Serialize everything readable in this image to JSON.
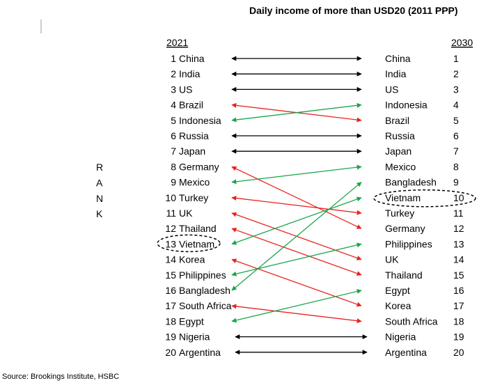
{
  "chart_data": {
    "type": "slope",
    "title": "Daily income of more than USD20 (2011 PPP)",
    "left_header": "2021",
    "right_header": "2030",
    "axis_label": [
      "R",
      "A",
      "N",
      "K"
    ],
    "source": "Source: Brookings Institute, HSBC",
    "colors": {
      "up": "#1aa64a",
      "down": "#e8231f",
      "same": "#000000",
      "highlight": "#000000"
    },
    "ranks_2021": [
      {
        "rank": 1,
        "country": "China"
      },
      {
        "rank": 2,
        "country": "India"
      },
      {
        "rank": 3,
        "country": "US"
      },
      {
        "rank": 4,
        "country": "Brazil"
      },
      {
        "rank": 5,
        "country": "Indonesia"
      },
      {
        "rank": 6,
        "country": "Russia"
      },
      {
        "rank": 7,
        "country": "Japan"
      },
      {
        "rank": 8,
        "country": "Germany"
      },
      {
        "rank": 9,
        "country": "Mexico"
      },
      {
        "rank": 10,
        "country": "Turkey"
      },
      {
        "rank": 11,
        "country": "UK"
      },
      {
        "rank": 12,
        "country": "Thailand"
      },
      {
        "rank": 13,
        "country": "Vietnam"
      },
      {
        "rank": 14,
        "country": "Korea"
      },
      {
        "rank": 15,
        "country": "Philippines"
      },
      {
        "rank": 16,
        "country": "Bangladesh"
      },
      {
        "rank": 17,
        "country": "South Africa"
      },
      {
        "rank": 18,
        "country": "Egypt"
      },
      {
        "rank": 19,
        "country": "Nigeria"
      },
      {
        "rank": 20,
        "country": "Argentina"
      }
    ],
    "ranks_2030": [
      {
        "rank": 1,
        "country": "China"
      },
      {
        "rank": 2,
        "country": "India"
      },
      {
        "rank": 3,
        "country": "US"
      },
      {
        "rank": 4,
        "country": "Indonesia"
      },
      {
        "rank": 5,
        "country": "Brazil"
      },
      {
        "rank": 6,
        "country": "Russia"
      },
      {
        "rank": 7,
        "country": "Japan"
      },
      {
        "rank": 8,
        "country": "Mexico"
      },
      {
        "rank": 9,
        "country": "Bangladesh"
      },
      {
        "rank": 10,
        "country": "Vietnam"
      },
      {
        "rank": 11,
        "country": "Turkey"
      },
      {
        "rank": 12,
        "country": "Germany"
      },
      {
        "rank": 13,
        "country": "Philippines"
      },
      {
        "rank": 14,
        "country": "UK"
      },
      {
        "rank": 15,
        "country": "Thailand"
      },
      {
        "rank": 16,
        "country": "Egypt"
      },
      {
        "rank": 17,
        "country": "Korea"
      },
      {
        "rank": 18,
        "country": "South Africa"
      },
      {
        "rank": 19,
        "country": "Nigeria"
      },
      {
        "rank": 20,
        "country": "Argentina"
      }
    ],
    "highlighted_country": "Vietnam"
  }
}
